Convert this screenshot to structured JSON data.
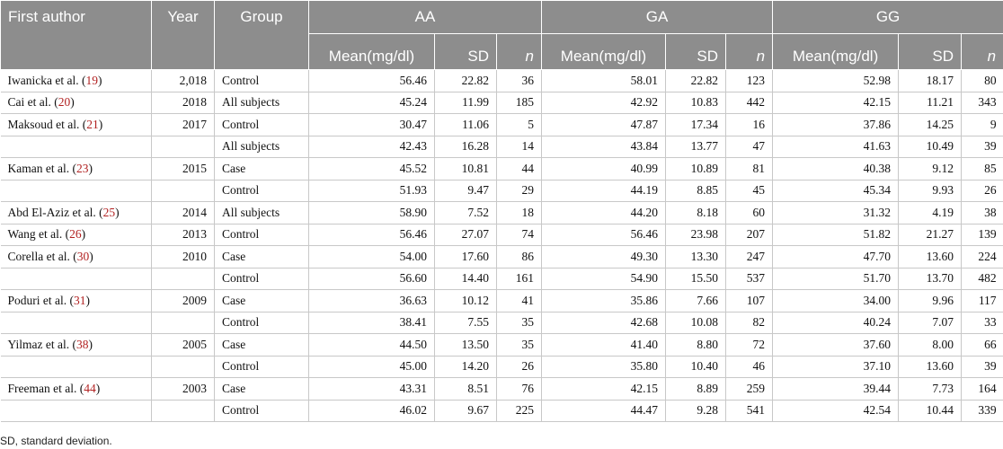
{
  "headers": {
    "first_author": "First author",
    "year": "Year",
    "group": "Group",
    "genotypes": [
      "AA",
      "GA",
      "GG"
    ],
    "mean": "Mean(mg/dl)",
    "sd": "SD",
    "n": "n"
  },
  "rows": [
    {
      "author": "Iwanicka et al. (",
      "ref": "19",
      "close": ")",
      "year": "2,018",
      "group": "Control",
      "vals": [
        "56.46",
        "22.82",
        "36",
        "58.01",
        "22.82",
        "123",
        "52.98",
        "18.17",
        "80"
      ]
    },
    {
      "author": "Cai et al. (",
      "ref": "20",
      "close": ")",
      "year": "2018",
      "group": "All subjects",
      "vals": [
        "45.24",
        "11.99",
        "185",
        "42.92",
        "10.83",
        "442",
        "42.15",
        "11.21",
        "343"
      ]
    },
    {
      "author": "Maksoud et al. (",
      "ref": "21",
      "close": ")",
      "year": "2017",
      "group": "Control",
      "vals": [
        "30.47",
        "11.06",
        "5",
        "47.87",
        "17.34",
        "16",
        "37.86",
        "14.25",
        "9"
      ]
    },
    {
      "author": "",
      "ref": "",
      "close": "",
      "year": "",
      "group": "All subjects",
      "vals": [
        "42.43",
        "16.28",
        "14",
        "43.84",
        "13.77",
        "47",
        "41.63",
        "10.49",
        "39"
      ]
    },
    {
      "author": "Kaman et al. (",
      "ref": "23",
      "close": ")",
      "year": "2015",
      "group": "Case",
      "vals": [
        "45.52",
        "10.81",
        "44",
        "40.99",
        "10.89",
        "81",
        "40.38",
        "9.12",
        "85"
      ]
    },
    {
      "author": "",
      "ref": "",
      "close": "",
      "year": "",
      "group": "Control",
      "vals": [
        "51.93",
        "9.47",
        "29",
        "44.19",
        "8.85",
        "45",
        "45.34",
        "9.93",
        "26"
      ]
    },
    {
      "author": "Abd El-Aziz et al. (",
      "ref": "25",
      "close": ")",
      "year": "2014",
      "group": "All subjects",
      "vals": [
        "58.90",
        "7.52",
        "18",
        "44.20",
        "8.18",
        "60",
        "31.32",
        "4.19",
        "38"
      ]
    },
    {
      "author": "Wang et al. (",
      "ref": "26",
      "close": ")",
      "year": "2013",
      "group": "Control",
      "vals": [
        "56.46",
        "27.07",
        "74",
        "56.46",
        "23.98",
        "207",
        "51.82",
        "21.27",
        "139"
      ]
    },
    {
      "author": "Corella et al. (",
      "ref": "30",
      "close": ")",
      "year": "2010",
      "group": "Case",
      "vals": [
        "54.00",
        "17.60",
        "86",
        "49.30",
        "13.30",
        "247",
        "47.70",
        "13.60",
        "224"
      ]
    },
    {
      "author": "",
      "ref": "",
      "close": "",
      "year": "",
      "group": "Control",
      "vals": [
        "56.60",
        "14.40",
        "161",
        "54.90",
        "15.50",
        "537",
        "51.70",
        "13.70",
        "482"
      ]
    },
    {
      "author": "Poduri et al. (",
      "ref": "31",
      "close": ")",
      "year": "2009",
      "group": "Case",
      "vals": [
        "36.63",
        "10.12",
        "41",
        "35.86",
        "7.66",
        "107",
        "34.00",
        "9.96",
        "117"
      ]
    },
    {
      "author": "",
      "ref": "",
      "close": "",
      "year": "",
      "group": "Control",
      "vals": [
        "38.41",
        "7.55",
        "35",
        "42.68",
        "10.08",
        "82",
        "40.24",
        "7.07",
        "33"
      ]
    },
    {
      "author": "Yilmaz et al. (",
      "ref": "38",
      "close": ")",
      "year": "2005",
      "group": "Case",
      "vals": [
        "44.50",
        "13.50",
        "35",
        "41.40",
        "8.80",
        "72",
        "37.60",
        "8.00",
        "66"
      ]
    },
    {
      "author": "",
      "ref": "",
      "close": "",
      "year": "",
      "group": "Control",
      "vals": [
        "45.00",
        "14.20",
        "26",
        "35.80",
        "10.40",
        "46",
        "37.10",
        "13.60",
        "39"
      ]
    },
    {
      "author": "Freeman et al. (",
      "ref": "44",
      "close": ")",
      "year": "2003",
      "group": "Case",
      "vals": [
        "43.31",
        "8.51",
        "76",
        "42.15",
        "8.89",
        "259",
        "39.44",
        "7.73",
        "164"
      ]
    },
    {
      "author": "",
      "ref": "",
      "close": "",
      "year": "",
      "group": "Control",
      "vals": [
        "46.02",
        "9.67",
        "225",
        "44.47",
        "9.28",
        "541",
        "42.54",
        "10.44",
        "339"
      ]
    }
  ],
  "footnote": "SD, standard deviation."
}
